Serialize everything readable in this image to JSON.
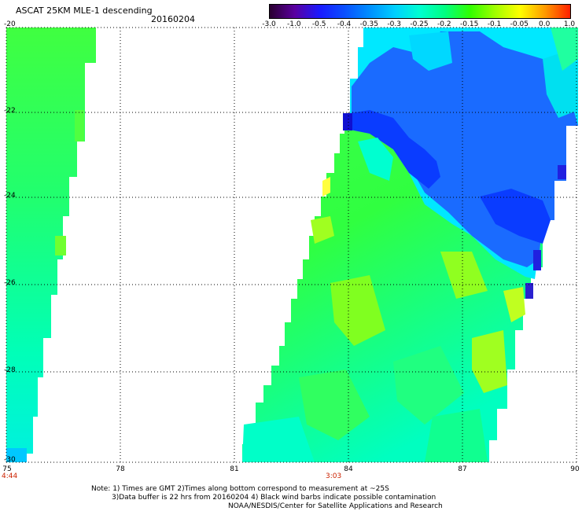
{
  "header": {
    "title": "ASCAT 25KM MLE-1 descending",
    "date": "20160204"
  },
  "colorbar": {
    "labels": [
      "-3.0",
      "-1.0",
      "-0.5",
      "-0.4",
      "-0.35",
      "-0.3",
      "-0.25",
      "-0.2",
      "-0.15",
      "-0.1",
      "-0.05",
      "0.0",
      "1.0"
    ],
    "colors": [
      "#2a0030",
      "#5a00a0",
      "#1a1aff",
      "#0a50ff",
      "#0090ff",
      "#00d0ff",
      "#00ffd0",
      "#00ff80",
      "#30ff00",
      "#a0ff00",
      "#ffff00",
      "#ff9900",
      "#ff2000"
    ]
  },
  "axes": {
    "lat_labels": [
      "-20",
      "-22",
      "-24",
      "-26",
      "-28",
      "-30"
    ],
    "lon_labels": [
      "75",
      "78",
      "81",
      "84",
      "87",
      "90"
    ],
    "lat_range": [
      -20,
      -30
    ],
    "lon_range": [
      75,
      90
    ]
  },
  "time_labels": [
    {
      "lon": 75,
      "text": "4:44"
    },
    {
      "lon": 84,
      "text": "3:03"
    }
  ],
  "notes": {
    "line1": "Note: 1) Times are GMT 2)Times along bottom correspond to measurement at ~25S",
    "line2": "3)Data buffer is 22 hrs from 20160204 4) Black wind barbs indicate possible contamination",
    "line3": "NOAA/NESDIS/Center for Satellite Applications and Research"
  }
}
